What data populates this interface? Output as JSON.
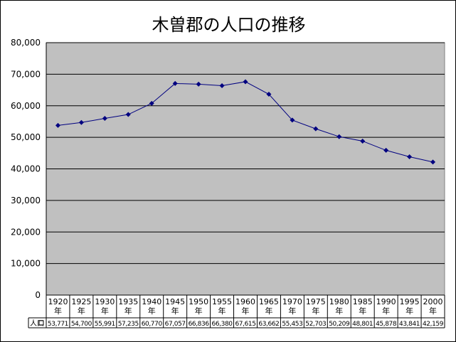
{
  "chart_data": {
    "type": "line",
    "title": "木曽郡の人口の推移",
    "categories": [
      "1920年",
      "1925年",
      "1930年",
      "1935年",
      "1940年",
      "1945年",
      "1950年",
      "1955年",
      "1960年",
      "1965年",
      "1970年",
      "1975年",
      "1980年",
      "1985年",
      "1990年",
      "1995年",
      "2000年"
    ],
    "category_lines": [
      [
        "1920",
        "年"
      ],
      [
        "1925",
        "年"
      ],
      [
        "1930",
        "年"
      ],
      [
        "1935",
        "年"
      ],
      [
        "1940",
        "年"
      ],
      [
        "1945",
        "年"
      ],
      [
        "1950",
        "年"
      ],
      [
        "1955",
        "年"
      ],
      [
        "1960",
        "年"
      ],
      [
        "1965",
        "年"
      ],
      [
        "1970",
        "年"
      ],
      [
        "1975",
        "年"
      ],
      [
        "1980",
        "年"
      ],
      [
        "1985",
        "年"
      ],
      [
        "1990",
        "年"
      ],
      [
        "1995",
        "年"
      ],
      [
        "2000",
        "年"
      ]
    ],
    "series": [
      {
        "name": "人口",
        "values": [
          53771,
          54700,
          55991,
          57235,
          60770,
          67057,
          66836,
          66380,
          67615,
          63662,
          55453,
          52703,
          50209,
          48801,
          45878,
          43841,
          42159
        ],
        "labels": [
          "53,771",
          "54,700",
          "55,991",
          "57,235",
          "60,770",
          "67,057",
          "66,836",
          "66,380",
          "67,615",
          "63,662",
          "55,453",
          "52,703",
          "50,209",
          "48,801",
          "45,878",
          "43,841",
          "42,159"
        ]
      }
    ],
    "ylim": [
      0,
      80000
    ],
    "yticks": [
      0,
      10000,
      20000,
      30000,
      40000,
      50000,
      60000,
      70000,
      80000
    ],
    "ytick_labels": [
      "0",
      "10,000",
      "20,000",
      "30,000",
      "40,000",
      "50,000",
      "60,000",
      "70,000",
      "80,000"
    ],
    "grid": true,
    "data_table": true,
    "colors": {
      "plot_background": "#c0c0c0",
      "line": "#000080",
      "gridline": "#000000"
    }
  }
}
